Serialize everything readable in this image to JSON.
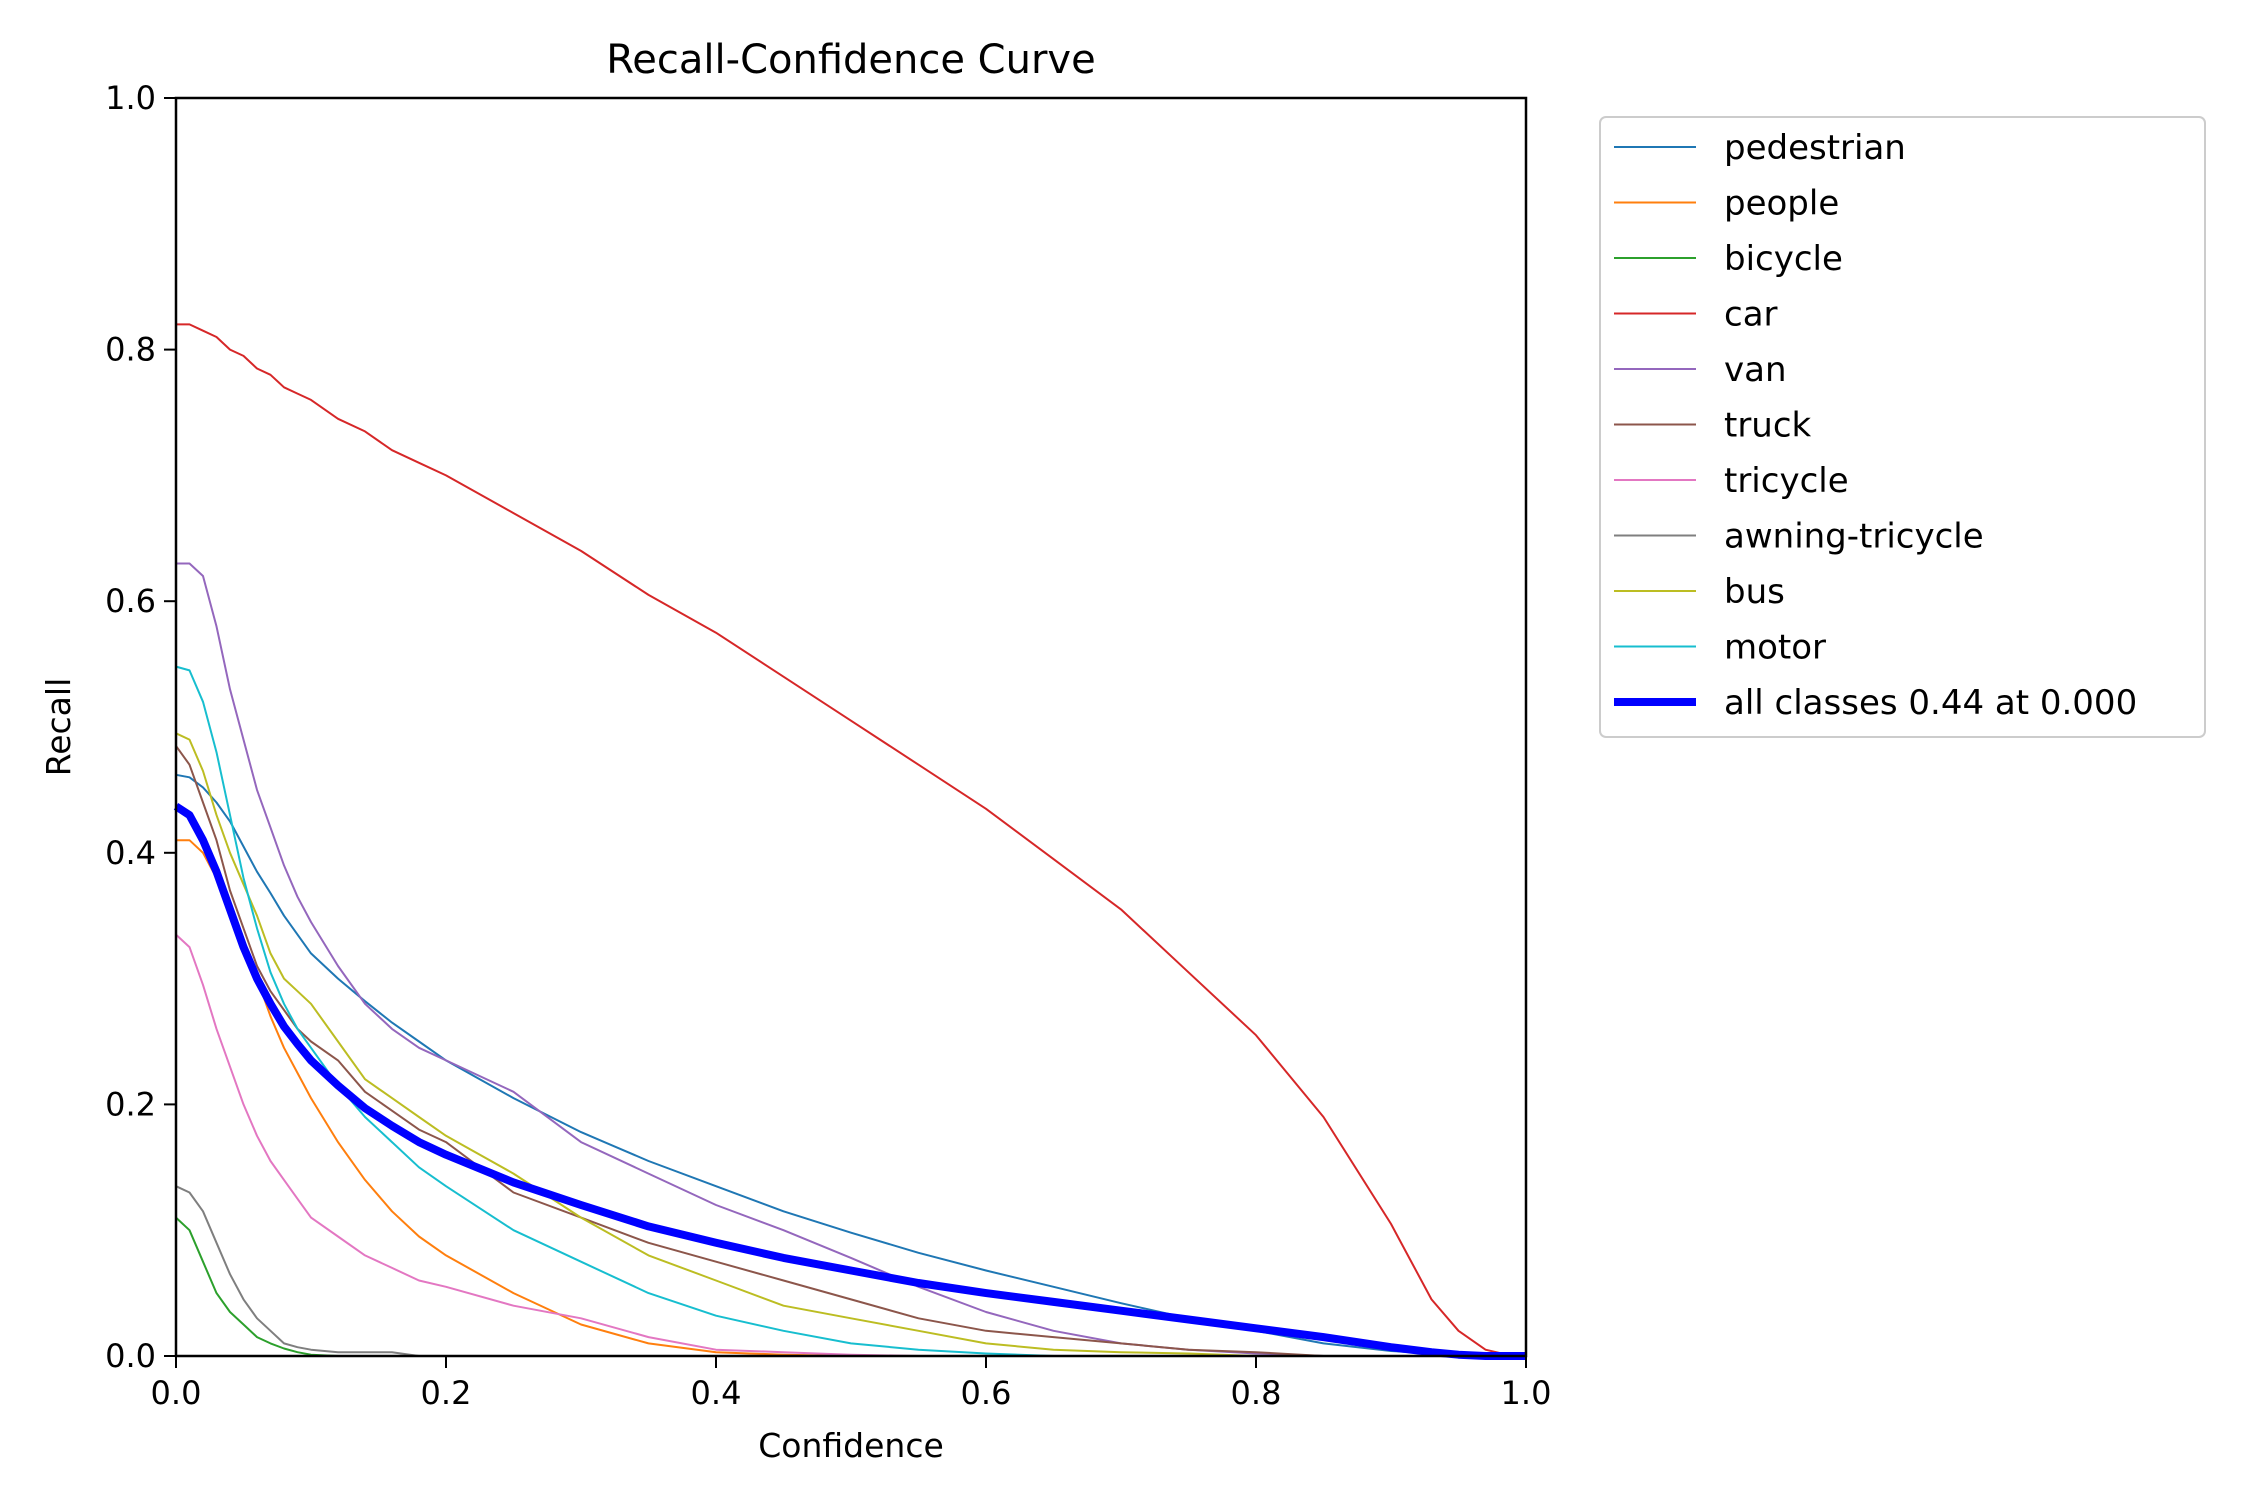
{
  "chart_data": {
    "type": "line",
    "title": "Recall-Confidence Curve",
    "xlabel": "Confidence",
    "ylabel": "Recall",
    "xlim": [
      0.0,
      1.0
    ],
    "ylim": [
      0.0,
      1.0
    ],
    "xticks": [
      "0.0",
      "0.2",
      "0.4",
      "0.6",
      "0.8",
      "1.0"
    ],
    "yticks": [
      "0.0",
      "0.2",
      "0.4",
      "0.6",
      "0.8",
      "1.0"
    ],
    "grid": false,
    "legend_position": "outside-right-top",
    "x": [
      0.0,
      0.01,
      0.02,
      0.03,
      0.04,
      0.05,
      0.06,
      0.07,
      0.08,
      0.09,
      0.1,
      0.12,
      0.14,
      0.16,
      0.18,
      0.2,
      0.25,
      0.3,
      0.35,
      0.4,
      0.45,
      0.5,
      0.55,
      0.6,
      0.65,
      0.7,
      0.75,
      0.8,
      0.85,
      0.9,
      0.93,
      0.95,
      0.97,
      0.99,
      1.0
    ],
    "series": [
      {
        "name": "pedestrian",
        "color": "#1f77b4",
        "width": 2,
        "values": [
          0.462,
          0.46,
          0.452,
          0.44,
          0.425,
          0.405,
          0.385,
          0.368,
          0.35,
          0.335,
          0.32,
          0.3,
          0.282,
          0.265,
          0.25,
          0.235,
          0.205,
          0.178,
          0.155,
          0.135,
          0.115,
          0.098,
          0.082,
          0.068,
          0.055,
          0.042,
          0.03,
          0.02,
          0.01,
          0.004,
          0.002,
          0.001,
          0.0,
          0.0,
          0.0
        ]
      },
      {
        "name": "people",
        "color": "#ff7f0e",
        "width": 2,
        "values": [
          0.41,
          0.41,
          0.4,
          0.38,
          0.355,
          0.33,
          0.3,
          0.27,
          0.245,
          0.225,
          0.205,
          0.17,
          0.14,
          0.115,
          0.095,
          0.08,
          0.05,
          0.025,
          0.01,
          0.003,
          0.001,
          0.0,
          0.0,
          0.0,
          0.0,
          0.0,
          0.0,
          0.0,
          0.0,
          0.0,
          0.0,
          0.0,
          0.0,
          0.0,
          0.0
        ]
      },
      {
        "name": "bicycle",
        "color": "#2ca02c",
        "width": 2,
        "values": [
          0.11,
          0.1,
          0.075,
          0.05,
          0.035,
          0.025,
          0.015,
          0.01,
          0.006,
          0.003,
          0.001,
          0.0,
          0.0,
          0.0,
          0.0,
          0.0,
          0.0,
          0.0,
          0.0,
          0.0,
          0.0,
          0.0,
          0.0,
          0.0,
          0.0,
          0.0,
          0.0,
          0.0,
          0.0,
          0.0,
          0.0,
          0.0,
          0.0,
          0.0,
          0.0
        ]
      },
      {
        "name": "car",
        "color": "#d62728",
        "width": 2,
        "values": [
          0.82,
          0.82,
          0.815,
          0.81,
          0.8,
          0.795,
          0.785,
          0.78,
          0.77,
          0.765,
          0.76,
          0.745,
          0.735,
          0.72,
          0.71,
          0.7,
          0.67,
          0.64,
          0.605,
          0.575,
          0.54,
          0.505,
          0.47,
          0.435,
          0.395,
          0.355,
          0.305,
          0.255,
          0.19,
          0.105,
          0.045,
          0.02,
          0.005,
          0.0,
          0.0
        ]
      },
      {
        "name": "van",
        "color": "#9467bd",
        "width": 2,
        "values": [
          0.63,
          0.63,
          0.62,
          0.58,
          0.53,
          0.49,
          0.45,
          0.42,
          0.39,
          0.365,
          0.345,
          0.31,
          0.28,
          0.26,
          0.245,
          0.235,
          0.21,
          0.17,
          0.145,
          0.12,
          0.1,
          0.078,
          0.055,
          0.035,
          0.02,
          0.01,
          0.005,
          0.002,
          0.0,
          0.0,
          0.0,
          0.0,
          0.0,
          0.0,
          0.0
        ]
      },
      {
        "name": "truck",
        "color": "#8c564b",
        "width": 2,
        "values": [
          0.485,
          0.47,
          0.44,
          0.41,
          0.37,
          0.34,
          0.31,
          0.29,
          0.275,
          0.26,
          0.25,
          0.235,
          0.21,
          0.195,
          0.18,
          0.17,
          0.13,
          0.11,
          0.09,
          0.075,
          0.06,
          0.045,
          0.03,
          0.02,
          0.015,
          0.01,
          0.005,
          0.003,
          0.0,
          0.0,
          0.0,
          0.0,
          0.0,
          0.0,
          0.0
        ]
      },
      {
        "name": "tricycle",
        "color": "#e377c2",
        "width": 2,
        "values": [
          0.335,
          0.325,
          0.295,
          0.26,
          0.23,
          0.2,
          0.175,
          0.155,
          0.14,
          0.125,
          0.11,
          0.095,
          0.08,
          0.07,
          0.06,
          0.055,
          0.04,
          0.03,
          0.015,
          0.005,
          0.003,
          0.001,
          0.0,
          0.0,
          0.0,
          0.0,
          0.0,
          0.0,
          0.0,
          0.0,
          0.0,
          0.0,
          0.0,
          0.0,
          0.0
        ]
      },
      {
        "name": "awning-tricycle",
        "color": "#7f7f7f",
        "width": 2,
        "values": [
          0.135,
          0.13,
          0.115,
          0.09,
          0.065,
          0.045,
          0.03,
          0.02,
          0.01,
          0.007,
          0.005,
          0.003,
          0.003,
          0.003,
          0.0,
          0.0,
          0.0,
          0.0,
          0.0,
          0.0,
          0.0,
          0.0,
          0.0,
          0.0,
          0.0,
          0.0,
          0.0,
          0.0,
          0.0,
          0.0,
          0.0,
          0.0,
          0.0,
          0.0,
          0.0
        ]
      },
      {
        "name": "bus",
        "color": "#bcbd22",
        "width": 2,
        "values": [
          0.495,
          0.49,
          0.465,
          0.43,
          0.4,
          0.375,
          0.35,
          0.32,
          0.3,
          0.29,
          0.28,
          0.25,
          0.22,
          0.205,
          0.19,
          0.175,
          0.145,
          0.11,
          0.08,
          0.06,
          0.04,
          0.03,
          0.02,
          0.01,
          0.005,
          0.003,
          0.002,
          0.0,
          0.0,
          0.0,
          0.0,
          0.0,
          0.0,
          0.0,
          0.0
        ]
      },
      {
        "name": "motor",
        "color": "#17becf",
        "width": 2,
        "values": [
          0.548,
          0.545,
          0.52,
          0.48,
          0.43,
          0.38,
          0.34,
          0.305,
          0.28,
          0.26,
          0.245,
          0.215,
          0.19,
          0.17,
          0.15,
          0.135,
          0.1,
          0.075,
          0.05,
          0.032,
          0.02,
          0.01,
          0.005,
          0.002,
          0.0,
          0.0,
          0.0,
          0.0,
          0.0,
          0.0,
          0.0,
          0.0,
          0.0,
          0.0,
          0.0
        ]
      },
      {
        "name": "all classes 0.44 at 0.000",
        "color": "#0000ff",
        "width": 8,
        "values": [
          0.437,
          0.43,
          0.41,
          0.385,
          0.355,
          0.325,
          0.3,
          0.28,
          0.262,
          0.248,
          0.235,
          0.215,
          0.197,
          0.183,
          0.17,
          0.16,
          0.138,
          0.12,
          0.103,
          0.09,
          0.078,
          0.068,
          0.058,
          0.05,
          0.043,
          0.036,
          0.029,
          0.022,
          0.015,
          0.007,
          0.003,
          0.001,
          0.0,
          0.0,
          0.0
        ]
      }
    ]
  }
}
